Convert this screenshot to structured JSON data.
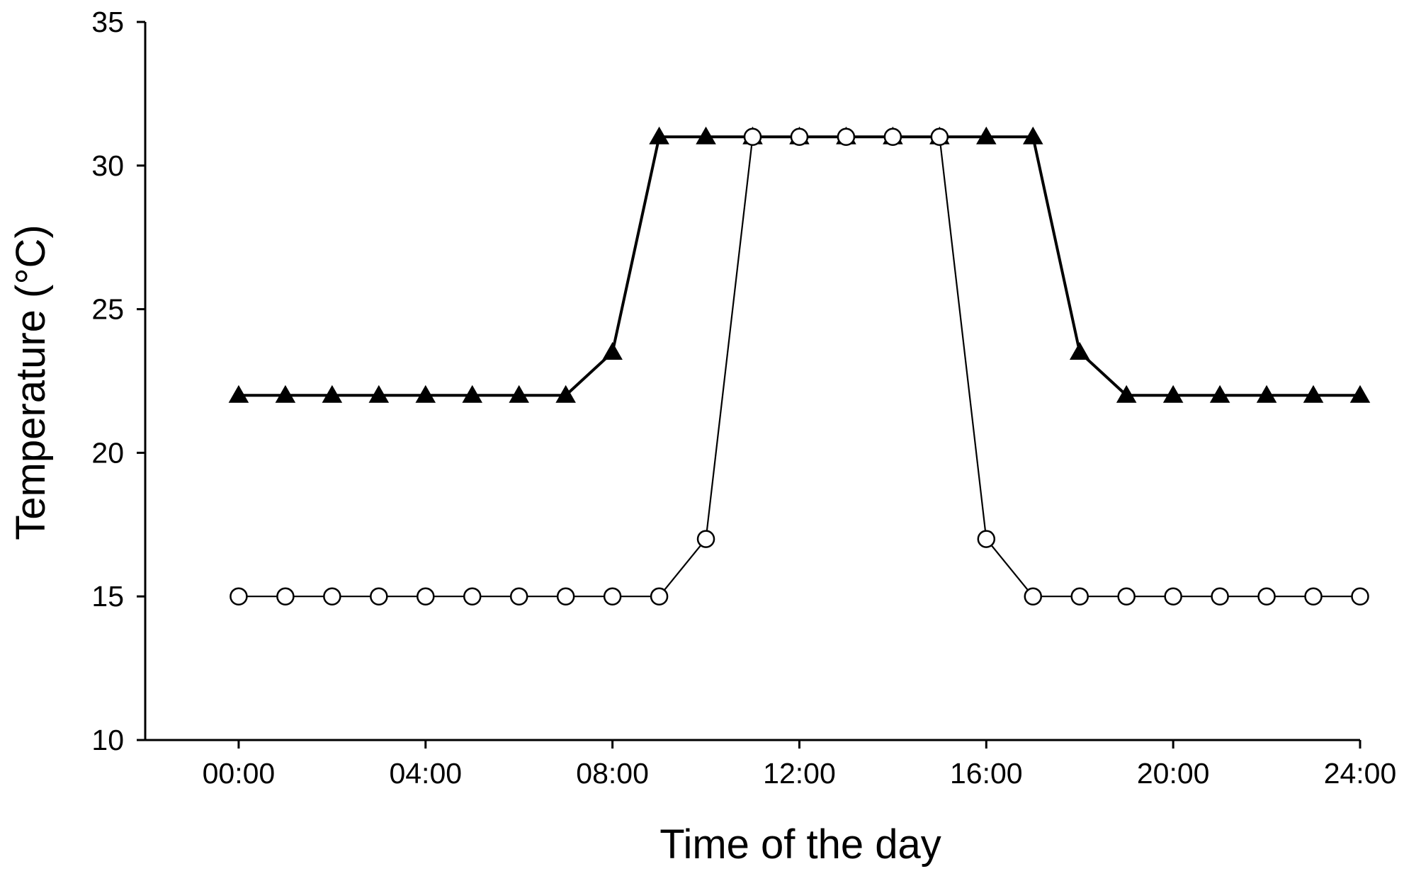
{
  "chart_data": {
    "type": "line",
    "title": "",
    "xlabel": "Time of the day",
    "ylabel": "Temperature (°C)",
    "xlim": [
      -2,
      24
    ],
    "ylim": [
      10,
      35
    ],
    "grid": false,
    "legend": "none",
    "x_ticks": [
      0,
      4,
      8,
      12,
      16,
      20,
      24
    ],
    "x_tick_labels": [
      "00:00",
      "04:00",
      "08:00",
      "12:00",
      "16:00",
      "20:00",
      "24:00"
    ],
    "y_ticks": [
      10,
      15,
      20,
      25,
      30,
      35
    ],
    "y_tick_labels": [
      "10",
      "15",
      "20",
      "25",
      "30",
      "35"
    ],
    "x": [
      0,
      1,
      2,
      3,
      4,
      5,
      6,
      7,
      8,
      9,
      10,
      11,
      12,
      13,
      14,
      15,
      16,
      17,
      18,
      19,
      20,
      21,
      22,
      23,
      24
    ],
    "series": [
      {
        "marker": "filled-triangle",
        "line_weight": "thick",
        "color": "#000000",
        "values": [
          22,
          22,
          22,
          22,
          22,
          22,
          22,
          22,
          23.5,
          31,
          31,
          31,
          31,
          31,
          31,
          31,
          31,
          31,
          23.5,
          22,
          22,
          22,
          22,
          22,
          22
        ]
      },
      {
        "marker": "open-circle",
        "line_weight": "thin",
        "color": "#000000",
        "values": [
          15,
          15,
          15,
          15,
          15,
          15,
          15,
          15,
          15,
          15,
          17,
          31,
          31,
          31,
          31,
          31,
          17,
          15,
          15,
          15,
          15,
          15,
          15,
          15,
          15
        ]
      }
    ]
  }
}
